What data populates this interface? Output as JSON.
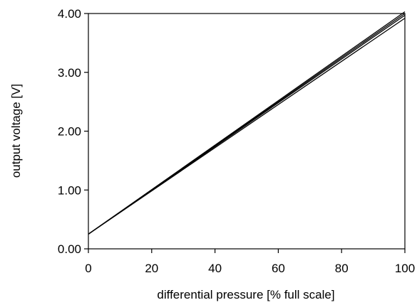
{
  "chart_data": {
    "type": "line",
    "title": "",
    "xlabel": "differential pressure [% full scale]",
    "ylabel": "output voltage [V]",
    "xlim": [
      0,
      100
    ],
    "ylim": [
      0,
      4
    ],
    "x_ticks": [
      0,
      20,
      40,
      60,
      80,
      100
    ],
    "x_tick_labels": [
      "0",
      "20",
      "40",
      "60",
      "80",
      "100"
    ],
    "y_ticks": [
      0,
      1,
      2,
      3,
      4
    ],
    "y_tick_labels": [
      "0.00",
      "1.00",
      "2.00",
      "3.00",
      "4.00"
    ],
    "grid": false,
    "legend": "none",
    "line_color": "#000000",
    "series": [
      {
        "x": [
          0,
          100
        ],
        "y": [
          0.25,
          4.03
        ]
      },
      {
        "x": [
          0,
          100
        ],
        "y": [
          0.25,
          4.0
        ]
      },
      {
        "x": [
          0,
          100
        ],
        "y": [
          0.25,
          3.97
        ]
      },
      {
        "x": [
          0,
          100
        ],
        "y": [
          0.25,
          3.92
        ]
      }
    ]
  }
}
